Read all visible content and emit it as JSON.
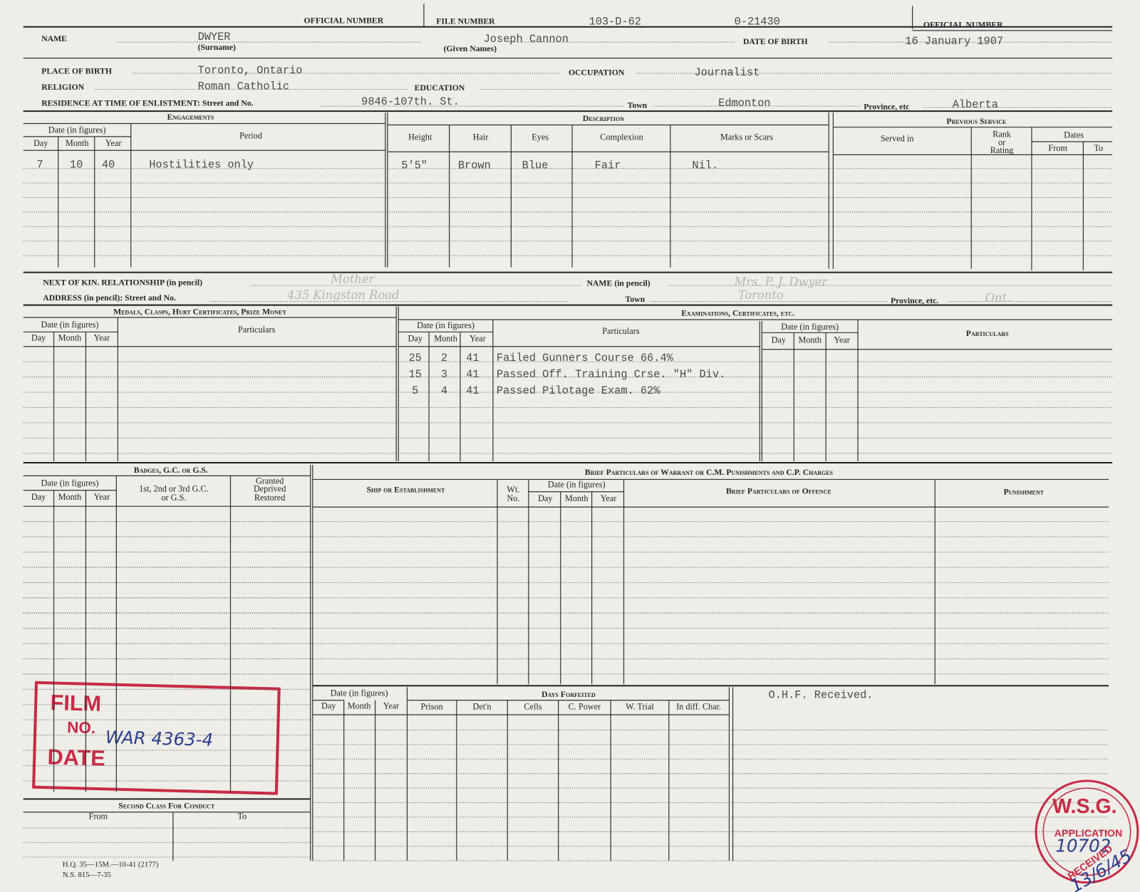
{
  "header": {
    "official_number_label": "OFFICIAL NUMBER",
    "file_number_label": "FILE NUMBER",
    "file_number": "103-D-62",
    "service_number": "0-21430",
    "official_number_label_right": "OFFICIAL NUMBER"
  },
  "personal": {
    "name_label": "NAME",
    "surname": "DWYER",
    "surname_label": "(Surname)",
    "given_names": "Joseph Cannon",
    "given_names_label": "(Given Names)",
    "dob_label": "DATE OF BIRTH",
    "dob": "16 January 1907",
    "place_of_birth_label": "PLACE OF BIRTH",
    "place_of_birth": "Toronto, Ontario",
    "occupation_label": "OCCUPATION",
    "occupation": "Journalist",
    "religion_label": "RELIGION",
    "religion": "Roman Catholic",
    "education_label": "EDUCATION",
    "residence_label": "RESIDENCE AT TIME OF ENLISTMENT: Street and No.",
    "street": "9846-107th. St.",
    "town_label": "Town",
    "town": "Edmonton",
    "province_label": "Province, etc",
    "province": "Alberta"
  },
  "engagements": {
    "title": "Engagements",
    "date_header": "Date (in figures)",
    "columns": [
      "Day",
      "Month",
      "Year",
      "Period"
    ],
    "rows": [
      [
        "7",
        "10",
        "40",
        "Hostilities only"
      ]
    ]
  },
  "description": {
    "title": "Description",
    "columns": [
      "Height",
      "Hair",
      "Eyes",
      "Complexion",
      "Marks or Scars"
    ],
    "rows": [
      [
        "5'5\"",
        "Brown",
        "Blue",
        "Fair",
        "Nil."
      ]
    ]
  },
  "previous_service": {
    "title": "Previous Service",
    "served_in": "Served in",
    "rank": [
      "Rank",
      "or",
      "Rating"
    ],
    "dates": "Dates",
    "from": "From",
    "to": "To"
  },
  "next_of_kin": {
    "relationship_label": "NEXT OF KIN. RELATIONSHIP (in pencil)",
    "relationship": "Mother",
    "name_label": "NAME (in pencil)",
    "name": "Mrs. P. J. Dwyer",
    "address_label": "ADDRESS (in pencil): Street and No.",
    "address": "435 Kingston Road",
    "town_label": "Town",
    "town": "Toronto",
    "province_label": "Province, etc.",
    "province": "Ont."
  },
  "medals": {
    "title": "Medals, Clasps, Hurt Certificates, Prize Money",
    "date_header": "Date (in figures)",
    "columns": [
      "Day",
      "Month",
      "Year"
    ],
    "particulars": "Particulars"
  },
  "examinations": {
    "title": "Examinations, Certificates, etc.",
    "date_header": "Date (in figures)",
    "columns": [
      "Day",
      "Month",
      "Year"
    ],
    "particulars": "Particulars",
    "rows": [
      [
        "25",
        "2",
        "41",
        "Failed Gunners Course 66.4%"
      ],
      [
        "15",
        "3",
        "41",
        "Passed Off. Training Crse. \"H\" Div."
      ],
      [
        "5",
        "4",
        "41",
        "Passed Pilotage Exam. 62%"
      ]
    ]
  },
  "other_particulars": {
    "date_header": "Date (in figures)",
    "columns": [
      "Day",
      "Month",
      "Year"
    ],
    "particulars": "Particulars"
  },
  "badges": {
    "title": "Badges, G.C. or G.S.",
    "date_header": "Date (in figures)",
    "columns": [
      "Day",
      "Month",
      "Year"
    ],
    "class_header": [
      "1st, 2nd or 3rd G.C.",
      "or G.S."
    ],
    "status_header": [
      "Granted",
      "Deprived",
      "Restored"
    ]
  },
  "punishments": {
    "title": "Brief Particulars of Warrant or C.M. Punishments and C.P. Charges",
    "ship": "Ship or Establishment",
    "wt_no": [
      "Wt.",
      "No."
    ],
    "date_header": "Date (in figures)",
    "columns": [
      "Day",
      "Month",
      "Year"
    ],
    "offence": "Brief Particulars of Offence",
    "punishment": "Punishment"
  },
  "days_forfeited": {
    "date_header": "Date (in figures)",
    "columns": [
      "Day",
      "Month",
      "Year"
    ],
    "title": "Days Forfeited",
    "categories": [
      "Prison",
      "Det'n",
      "Cells",
      "C. Power",
      "W. Trial",
      "In diff. Char."
    ],
    "remark": "O.H.F. Received."
  },
  "second_class": {
    "title": "Second Class For Conduct",
    "from": "From",
    "to": "To"
  },
  "footer": [
    "H.Q. 35—15M.—10-41 (2177)",
    "N.S. 815—7-35"
  ],
  "stamps": {
    "film": {
      "film": "FILM",
      "no": "NO.",
      "number": "WAR 4363-4",
      "date": "DATE"
    },
    "wsg": {
      "title": "W.S.G.",
      "application": "APPLICATION",
      "number": "10702",
      "received": "RECEIVED",
      "date": "13/6/45"
    }
  }
}
